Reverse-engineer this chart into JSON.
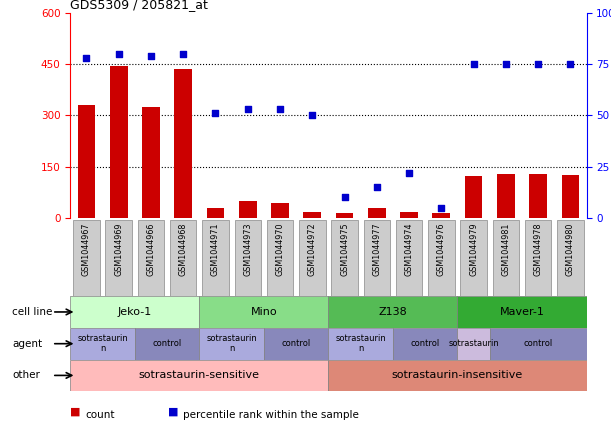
{
  "title": "GDS5309 / 205821_at",
  "samples": [
    "GSM1044967",
    "GSM1044969",
    "GSM1044966",
    "GSM1044968",
    "GSM1044971",
    "GSM1044973",
    "GSM1044970",
    "GSM1044972",
    "GSM1044975",
    "GSM1044977",
    "GSM1044974",
    "GSM1044976",
    "GSM1044979",
    "GSM1044981",
    "GSM1044978",
    "GSM1044980"
  ],
  "counts": [
    330,
    445,
    325,
    435,
    28,
    48,
    42,
    18,
    15,
    28,
    18,
    15,
    122,
    128,
    128,
    125
  ],
  "percentiles": [
    78,
    80,
    79,
    80,
    51,
    53,
    53,
    50,
    10,
    15,
    22,
    5,
    75,
    75,
    75,
    75
  ],
  "left_ylim": [
    0,
    600
  ],
  "left_yticks": [
    0,
    150,
    300,
    450,
    600
  ],
  "right_ylim": [
    0,
    100
  ],
  "right_yticks": [
    0,
    25,
    50,
    75,
    100
  ],
  "bar_color": "#cc0000",
  "dot_color": "#0000cc",
  "cell_lines": [
    {
      "label": "Jeko-1",
      "start": 0,
      "end": 4,
      "color": "#ccffcc"
    },
    {
      "label": "Mino",
      "start": 4,
      "end": 8,
      "color": "#88dd88"
    },
    {
      "label": "Z138",
      "start": 8,
      "end": 12,
      "color": "#55bb55"
    },
    {
      "label": "Maver-1",
      "start": 12,
      "end": 16,
      "color": "#33aa33"
    }
  ],
  "agents": [
    {
      "label": "sotrastaurin\nn",
      "start": 0,
      "end": 2,
      "color": "#aaaadd"
    },
    {
      "label": "control",
      "start": 2,
      "end": 4,
      "color": "#8888bb"
    },
    {
      "label": "sotrastaurin\nn",
      "start": 4,
      "end": 6,
      "color": "#aaaadd"
    },
    {
      "label": "control",
      "start": 6,
      "end": 8,
      "color": "#8888bb"
    },
    {
      "label": "sotrastaurin\nn",
      "start": 8,
      "end": 10,
      "color": "#aaaadd"
    },
    {
      "label": "control",
      "start": 10,
      "end": 12,
      "color": "#8888bb"
    },
    {
      "label": "sotrastaurin",
      "start": 12,
      "end": 13,
      "color": "#ccbbdd"
    },
    {
      "label": "control",
      "start": 13,
      "end": 16,
      "color": "#8888bb"
    }
  ],
  "other": [
    {
      "label": "sotrastaurin-sensitive",
      "start": 0,
      "end": 8,
      "color": "#ffbbbb"
    },
    {
      "label": "sotrastaurin-insensitive",
      "start": 8,
      "end": 16,
      "color": "#dd8877"
    }
  ],
  "row_labels": [
    "cell line",
    "agent",
    "other"
  ],
  "legend_items": [
    {
      "label": "count",
      "color": "#cc0000"
    },
    {
      "label": "percentile rank within the sample",
      "color": "#0000cc"
    }
  ],
  "background_color": "#ffffff",
  "grid_color": "#000000",
  "sample_box_color": "#cccccc",
  "sample_box_edge": "#888888"
}
